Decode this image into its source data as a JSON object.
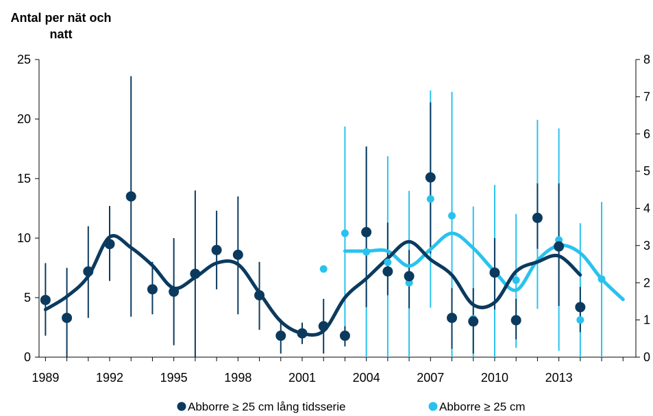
{
  "chart_data": {
    "type": "scatter",
    "title": "",
    "ylabel": "Antal per nät och natt",
    "xlabel": "",
    "xlim": [
      1988.7,
      2016.6
    ],
    "ylim_left": [
      0,
      25
    ],
    "ylim_right": [
      0,
      8
    ],
    "y_ticks_left": [
      "0",
      "5",
      "10",
      "15",
      "20",
      "25"
    ],
    "y_ticks_right": [
      "0",
      "1",
      "2",
      "3",
      "4",
      "5",
      "6",
      "7",
      "8"
    ],
    "x_ticks": [
      "1989",
      "1992",
      "1995",
      "1998",
      "2001",
      "2004",
      "2007",
      "2010",
      "2013"
    ],
    "grid": false,
    "legend_position": "bottom",
    "colors": {
      "dark": "#0b3a5e",
      "light": "#29c2ee"
    },
    "series": [
      {
        "name": "Abborre ≥ 25 cm lång tidsserie",
        "axis": "left",
        "color": "#0b3a5e",
        "points": [
          {
            "x": 1989,
            "y": 4.8,
            "lo": 1.8,
            "hi": 7.9
          },
          {
            "x": 1990,
            "y": 3.3,
            "lo": 0.0,
            "hi": 7.5
          },
          {
            "x": 1991,
            "y": 7.2,
            "lo": 3.3,
            "hi": 11.0
          },
          {
            "x": 1992,
            "y": 9.5,
            "lo": 6.4,
            "hi": 12.7
          },
          {
            "x": 1993,
            "y": 13.5,
            "lo": 3.4,
            "hi": 23.6
          },
          {
            "x": 1994,
            "y": 5.7,
            "lo": 3.6,
            "hi": 8.0
          },
          {
            "x": 1995,
            "y": 5.5,
            "lo": 1.0,
            "hi": 10.0
          },
          {
            "x": 1996,
            "y": 7.0,
            "lo": 0.0,
            "hi": 14.0
          },
          {
            "x": 1997,
            "y": 9.0,
            "lo": 5.7,
            "hi": 12.3
          },
          {
            "x": 1998,
            "y": 8.6,
            "lo": 3.6,
            "hi": 13.5
          },
          {
            "x": 1999,
            "y": 5.2,
            "lo": 2.3,
            "hi": 8.0
          },
          {
            "x": 2000,
            "y": 1.8,
            "lo": 0.3,
            "hi": 3.2
          },
          {
            "x": 2001,
            "y": 2.0,
            "lo": 1.1,
            "hi": 2.9
          },
          {
            "x": 2002,
            "y": 2.6,
            "lo": 0.3,
            "hi": 4.9
          },
          {
            "x": 2003,
            "y": 1.8,
            "lo": 0.9,
            "hi": 2.6
          },
          {
            "x": 2004,
            "y": 10.5,
            "lo": 4.2,
            "hi": 17.7
          },
          {
            "x": 2005,
            "y": 7.2,
            "lo": 5.2,
            "hi": 11.3
          },
          {
            "x": 2006,
            "y": 6.8,
            "lo": 4.1,
            "hi": 9.0
          },
          {
            "x": 2007,
            "y": 15.1,
            "lo": 8.7,
            "hi": 21.4
          },
          {
            "x": 2008,
            "y": 3.3,
            "lo": 0.7,
            "hi": 5.8
          },
          {
            "x": 2009,
            "y": 3.0,
            "lo": 0.3,
            "hi": 5.8
          },
          {
            "x": 2010,
            "y": 7.1,
            "lo": 4.0,
            "hi": 10.0
          },
          {
            "x": 2011,
            "y": 3.1,
            "lo": 1.5,
            "hi": 4.9
          },
          {
            "x": 2012,
            "y": 11.7,
            "lo": 9.1,
            "hi": 14.6
          },
          {
            "x": 2013,
            "y": 9.3,
            "lo": 4.3,
            "hi": 14.6
          },
          {
            "x": 2014,
            "y": 4.2,
            "lo": 2.1,
            "hi": 5.9
          }
        ],
        "trend": [
          [
            1989,
            4.0
          ],
          [
            1990,
            5.1
          ],
          [
            1991,
            6.8
          ],
          [
            1992,
            10.1
          ],
          [
            1993,
            9.2
          ],
          [
            1994,
            7.7
          ],
          [
            1995,
            5.8
          ],
          [
            1996,
            6.7
          ],
          [
            1997,
            7.9
          ],
          [
            1998,
            7.8
          ],
          [
            1999,
            5.4
          ],
          [
            2000,
            3.0
          ],
          [
            2001,
            2.0
          ],
          [
            2002,
            2.2
          ],
          [
            2003,
            5.0
          ],
          [
            2004,
            6.6
          ],
          [
            2005,
            8.3
          ],
          [
            2006,
            9.7
          ],
          [
            2007,
            8.2
          ],
          [
            2008,
            6.9
          ],
          [
            2009,
            4.4
          ],
          [
            2010,
            4.6
          ],
          [
            2011,
            7.2
          ],
          [
            2012,
            8.0
          ],
          [
            2013,
            8.5
          ],
          [
            2014,
            6.9
          ]
        ]
      },
      {
        "name": "Abborre ≥ 25 cm",
        "axis": "right",
        "color": "#29c2ee",
        "points": [
          {
            "x": 2002,
            "y": 2.37,
            "lo": 2.37,
            "hi": 2.37
          },
          {
            "x": 2003,
            "y": 3.33,
            "lo": 0.58,
            "hi": 6.2
          },
          {
            "x": 2004,
            "y": 2.83,
            "lo": 0.0,
            "hi": 5.63
          },
          {
            "x": 2005,
            "y": 2.55,
            "lo": 0.0,
            "hi": 5.4
          },
          {
            "x": 2006,
            "y": 2.0,
            "lo": 0.0,
            "hi": 4.47
          },
          {
            "x": 2007,
            "y": 4.25,
            "lo": 1.33,
            "hi": 7.17
          },
          {
            "x": 2008,
            "y": 3.8,
            "lo": 0.0,
            "hi": 7.13
          },
          {
            "x": 2009,
            "y": 1.03,
            "lo": 0.0,
            "hi": 4.05
          },
          {
            "x": 2010,
            "y": 2.25,
            "lo": 0.0,
            "hi": 4.63
          },
          {
            "x": 2011,
            "y": 2.07,
            "lo": 0.25,
            "hi": 3.85
          },
          {
            "x": 2012,
            "y": 3.73,
            "lo": 1.3,
            "hi": 6.38
          },
          {
            "x": 2013,
            "y": 3.15,
            "lo": 0.17,
            "hi": 6.15
          },
          {
            "x": 2014,
            "y": 1.0,
            "lo": 0.0,
            "hi": 3.6
          },
          {
            "x": 2015,
            "y": 2.1,
            "lo": 0.0,
            "hi": 4.17
          }
        ],
        "trend": [
          [
            2003,
            2.85
          ],
          [
            2004,
            2.85
          ],
          [
            2005,
            2.85
          ],
          [
            2006,
            2.45
          ],
          [
            2007,
            2.9
          ],
          [
            2008,
            3.33
          ],
          [
            2009,
            2.93
          ],
          [
            2010,
            2.3
          ],
          [
            2011,
            1.8
          ],
          [
            2012,
            2.6
          ],
          [
            2013,
            3.0
          ],
          [
            2014,
            2.8
          ],
          [
            2015,
            2.1
          ],
          [
            2016,
            1.55
          ]
        ]
      }
    ]
  }
}
